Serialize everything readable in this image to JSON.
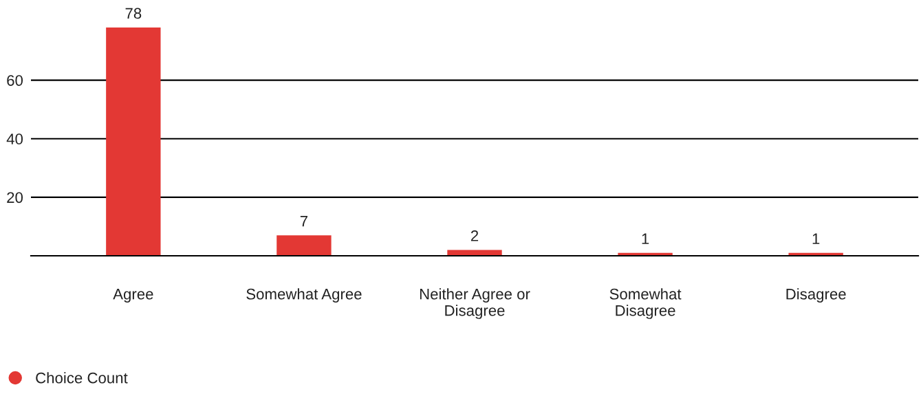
{
  "chart_data": {
    "type": "bar",
    "categories": [
      "Agree",
      "Somewhat Agree",
      "Neither Agree or\nDisagree",
      "Somewhat\nDisagree",
      "Disagree"
    ],
    "series": [
      {
        "name": "Choice Count",
        "color": "#e33834",
        "values": [
          78,
          7,
          2,
          1,
          1
        ]
      }
    ],
    "ylim": [
      0,
      78
    ],
    "yticks": [
      20,
      40,
      60
    ],
    "grid": "y",
    "legend": "bottom left",
    "marker": "circle",
    "data_labels": true
  }
}
